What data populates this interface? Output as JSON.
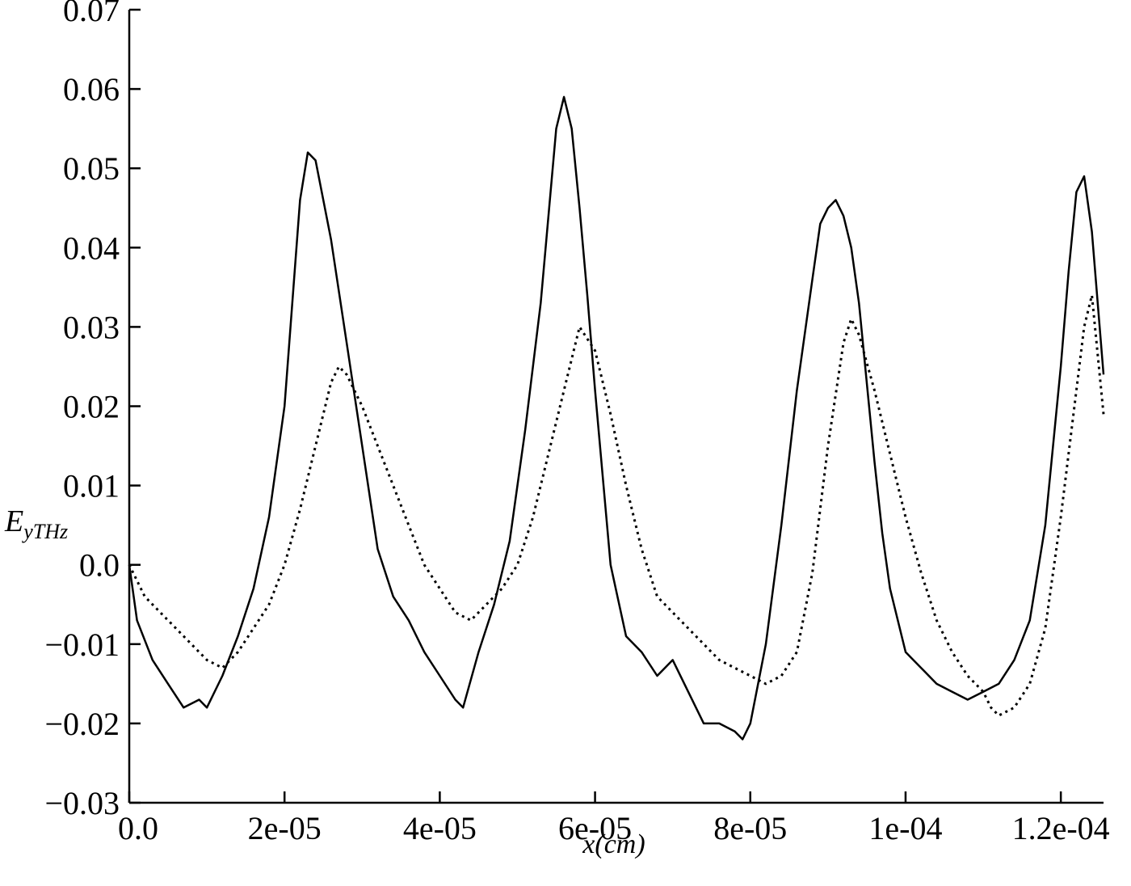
{
  "chart_data": {
    "type": "line",
    "xlabel": "x(cm)",
    "ylabel": {
      "main": "E",
      "sub": "yTHz"
    },
    "xlim": [
      0,
      0.0001255
    ],
    "ylim": [
      -0.03,
      0.07
    ],
    "x_ticks": [
      {
        "value": 0,
        "label": "0.0"
      },
      {
        "value": 2e-05,
        "label": "2e-05"
      },
      {
        "value": 4e-05,
        "label": "4e-05"
      },
      {
        "value": 6e-05,
        "label": "6e-05"
      },
      {
        "value": 8e-05,
        "label": "8e-05"
      },
      {
        "value": 0.0001,
        "label": "1e-04"
      },
      {
        "value": 0.00012,
        "label": "1.2e-04"
      }
    ],
    "y_ticks": [
      {
        "value": 0.07,
        "label": "0.07"
      },
      {
        "value": 0.06,
        "label": "0.06"
      },
      {
        "value": 0.05,
        "label": "0.05"
      },
      {
        "value": 0.04,
        "label": "0.04"
      },
      {
        "value": 0.03,
        "label": "0.03"
      },
      {
        "value": 0.02,
        "label": "0.02"
      },
      {
        "value": 0.01,
        "label": "0.01"
      },
      {
        "value": 0,
        "label": "0.0"
      },
      {
        "value": -0.01,
        "label": "−0.01"
      },
      {
        "value": -0.02,
        "label": "−0.02"
      },
      {
        "value": -0.03,
        "label": "−0.03"
      }
    ],
    "grid": false,
    "legend": "none",
    "series": [
      {
        "style": "solid",
        "color": "#000000",
        "x": [
          0,
          1e-06,
          3e-06,
          5e-06,
          7e-06,
          9e-06,
          1e-05,
          1.2e-05,
          1.4e-05,
          1.6e-05,
          1.8e-05,
          2e-05,
          2.1e-05,
          2.2e-05,
          2.3e-05,
          2.4e-05,
          2.5e-05,
          2.6e-05,
          2.8e-05,
          3e-05,
          3.2e-05,
          3.4e-05,
          3.6e-05,
          3.8e-05,
          4e-05,
          4.2e-05,
          4.3e-05,
          4.5e-05,
          4.7e-05,
          4.9e-05,
          5.1e-05,
          5.3e-05,
          5.4e-05,
          5.5e-05,
          5.6e-05,
          5.7e-05,
          5.8e-05,
          5.9e-05,
          6e-05,
          6.2e-05,
          6.4e-05,
          6.6e-05,
          6.8e-05,
          7e-05,
          7.2e-05,
          7.4e-05,
          7.6e-05,
          7.8e-05,
          7.9e-05,
          8e-05,
          8.2e-05,
          8.4e-05,
          8.6e-05,
          8.8e-05,
          8.9e-05,
          9e-05,
          9.1e-05,
          9.2e-05,
          9.3e-05,
          9.4e-05,
          9.5e-05,
          9.6e-05,
          9.7e-05,
          9.8e-05,
          0.0001,
          0.000102,
          0.000104,
          0.000106,
          0.000108,
          0.00011,
          0.000112,
          0.000114,
          0.000116,
          0.000118,
          0.00012,
          0.000121,
          0.000122,
          0.000123,
          0.000124,
          0.0001255
        ],
        "y": [
          0.0,
          -0.007,
          -0.012,
          -0.015,
          -0.018,
          -0.017,
          -0.018,
          -0.014,
          -0.009,
          -0.003,
          0.006,
          0.02,
          0.033,
          0.046,
          0.052,
          0.051,
          0.046,
          0.041,
          0.028,
          0.015,
          0.002,
          -0.004,
          -0.007,
          -0.011,
          -0.014,
          -0.017,
          -0.018,
          -0.011,
          -0.005,
          0.003,
          0.017,
          0.033,
          0.044,
          0.055,
          0.059,
          0.055,
          0.045,
          0.034,
          0.022,
          0.0,
          -0.009,
          -0.011,
          -0.014,
          -0.012,
          -0.016,
          -0.02,
          -0.02,
          -0.021,
          -0.022,
          -0.02,
          -0.01,
          0.005,
          0.022,
          0.036,
          0.043,
          0.045,
          0.046,
          0.044,
          0.04,
          0.033,
          0.023,
          0.013,
          0.004,
          -0.003,
          -0.011,
          -0.013,
          -0.015,
          -0.016,
          -0.017,
          -0.016,
          -0.015,
          -0.012,
          -0.007,
          0.005,
          0.025,
          0.037,
          0.047,
          0.049,
          0.042,
          0.024
        ]
      },
      {
        "style": "dotted",
        "color": "#000000",
        "x": [
          0,
          2e-06,
          4e-06,
          6e-06,
          8e-06,
          1e-05,
          1.2e-05,
          1.4e-05,
          1.6e-05,
          1.8e-05,
          2e-05,
          2.2e-05,
          2.4e-05,
          2.6e-05,
          2.7e-05,
          2.8e-05,
          3e-05,
          3.2e-05,
          3.4e-05,
          3.6e-05,
          3.8e-05,
          4e-05,
          4.2e-05,
          4.4e-05,
          4.6e-05,
          4.8e-05,
          5e-05,
          5.2e-05,
          5.4e-05,
          5.6e-05,
          5.8e-05,
          6e-05,
          6.2e-05,
          6.4e-05,
          6.6e-05,
          6.8e-05,
          7e-05,
          7.2e-05,
          7.4e-05,
          7.6e-05,
          7.8e-05,
          8e-05,
          8.2e-05,
          8.4e-05,
          8.6e-05,
          8.8e-05,
          9e-05,
          9.2e-05,
          9.3e-05,
          9.4e-05,
          9.6e-05,
          9.8e-05,
          0.0001,
          0.000102,
          0.000104,
          0.000106,
          0.000108,
          0.00011,
          0.000111,
          0.000112,
          0.000114,
          0.000116,
          0.000118,
          0.00012,
          0.000122,
          0.000123,
          0.000124,
          0.0001255
        ],
        "y": [
          0.0,
          -0.004,
          -0.006,
          -0.008,
          -0.01,
          -0.012,
          -0.013,
          -0.011,
          -0.008,
          -0.005,
          0.0,
          0.007,
          0.015,
          0.023,
          0.025,
          0.024,
          0.02,
          0.015,
          0.01,
          0.005,
          0.0,
          -0.003,
          -0.006,
          -0.007,
          -0.005,
          -0.003,
          0.0,
          0.006,
          0.014,
          0.022,
          0.03,
          0.027,
          0.019,
          0.01,
          0.002,
          -0.004,
          -0.006,
          -0.008,
          -0.01,
          -0.012,
          -0.013,
          -0.014,
          -0.015,
          -0.014,
          -0.011,
          -0.001,
          0.015,
          0.028,
          0.031,
          0.029,
          0.022,
          0.014,
          0.006,
          -0.001,
          -0.007,
          -0.011,
          -0.014,
          -0.016,
          -0.018,
          -0.019,
          -0.018,
          -0.015,
          -0.008,
          0.006,
          0.022,
          0.03,
          0.034,
          0.019
        ]
      }
    ]
  }
}
